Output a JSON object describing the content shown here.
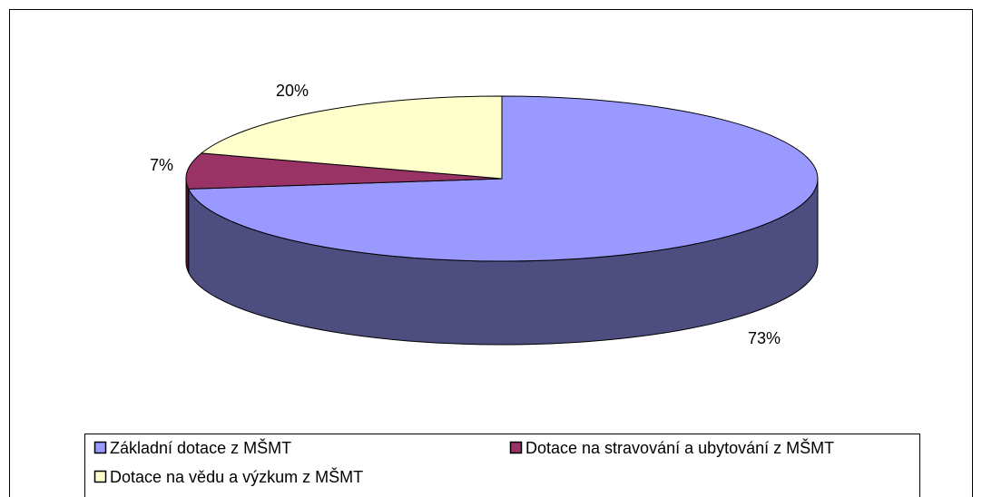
{
  "chart_data": {
    "type": "pie3d",
    "categories": [
      "Základní dotace z MŠMT",
      "Dotace na stravování a ubytování z MŠMT",
      "Dotace na vědu a výzkum z MŠMT"
    ],
    "values": [
      73,
      7,
      20
    ],
    "value_labels": [
      "73%",
      "7%",
      "20%"
    ],
    "colors": [
      "#9999ff",
      "#993366",
      "#ffffcc"
    ],
    "side_colors": [
      "#4d4d80",
      "#4d1a33",
      "#80806a"
    ]
  }
}
